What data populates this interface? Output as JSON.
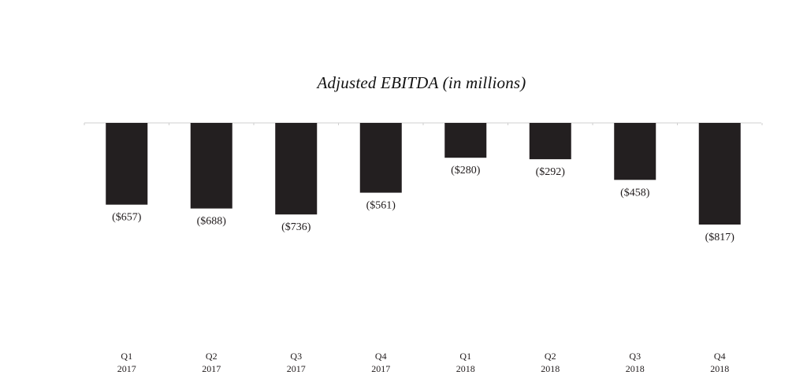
{
  "chart_data": {
    "type": "bar",
    "title": "Adjusted EBITDA (in millions)",
    "categories": [
      [
        "Q1",
        "2017"
      ],
      [
        "Q2",
        "2017"
      ],
      [
        "Q3",
        "2017"
      ],
      [
        "Q4",
        "2017"
      ],
      [
        "Q1",
        "2018"
      ],
      [
        "Q2",
        "2018"
      ],
      [
        "Q3",
        "2018"
      ],
      [
        "Q4",
        "2018"
      ]
    ],
    "values": [
      -657,
      -688,
      -736,
      -561,
      -280,
      -292,
      -458,
      -817
    ],
    "data_labels": [
      "($657)",
      "($688)",
      "($736)",
      "($561)",
      "($280)",
      "($292)",
      "($458)",
      "($817)"
    ],
    "xlabel": "",
    "ylabel": "",
    "ylim": [
      -817,
      0
    ],
    "grid": false,
    "legend": "none",
    "bar_color": "#231f20",
    "baseline_color": "#cfcfcf",
    "text_color": "#1f1a1b"
  }
}
